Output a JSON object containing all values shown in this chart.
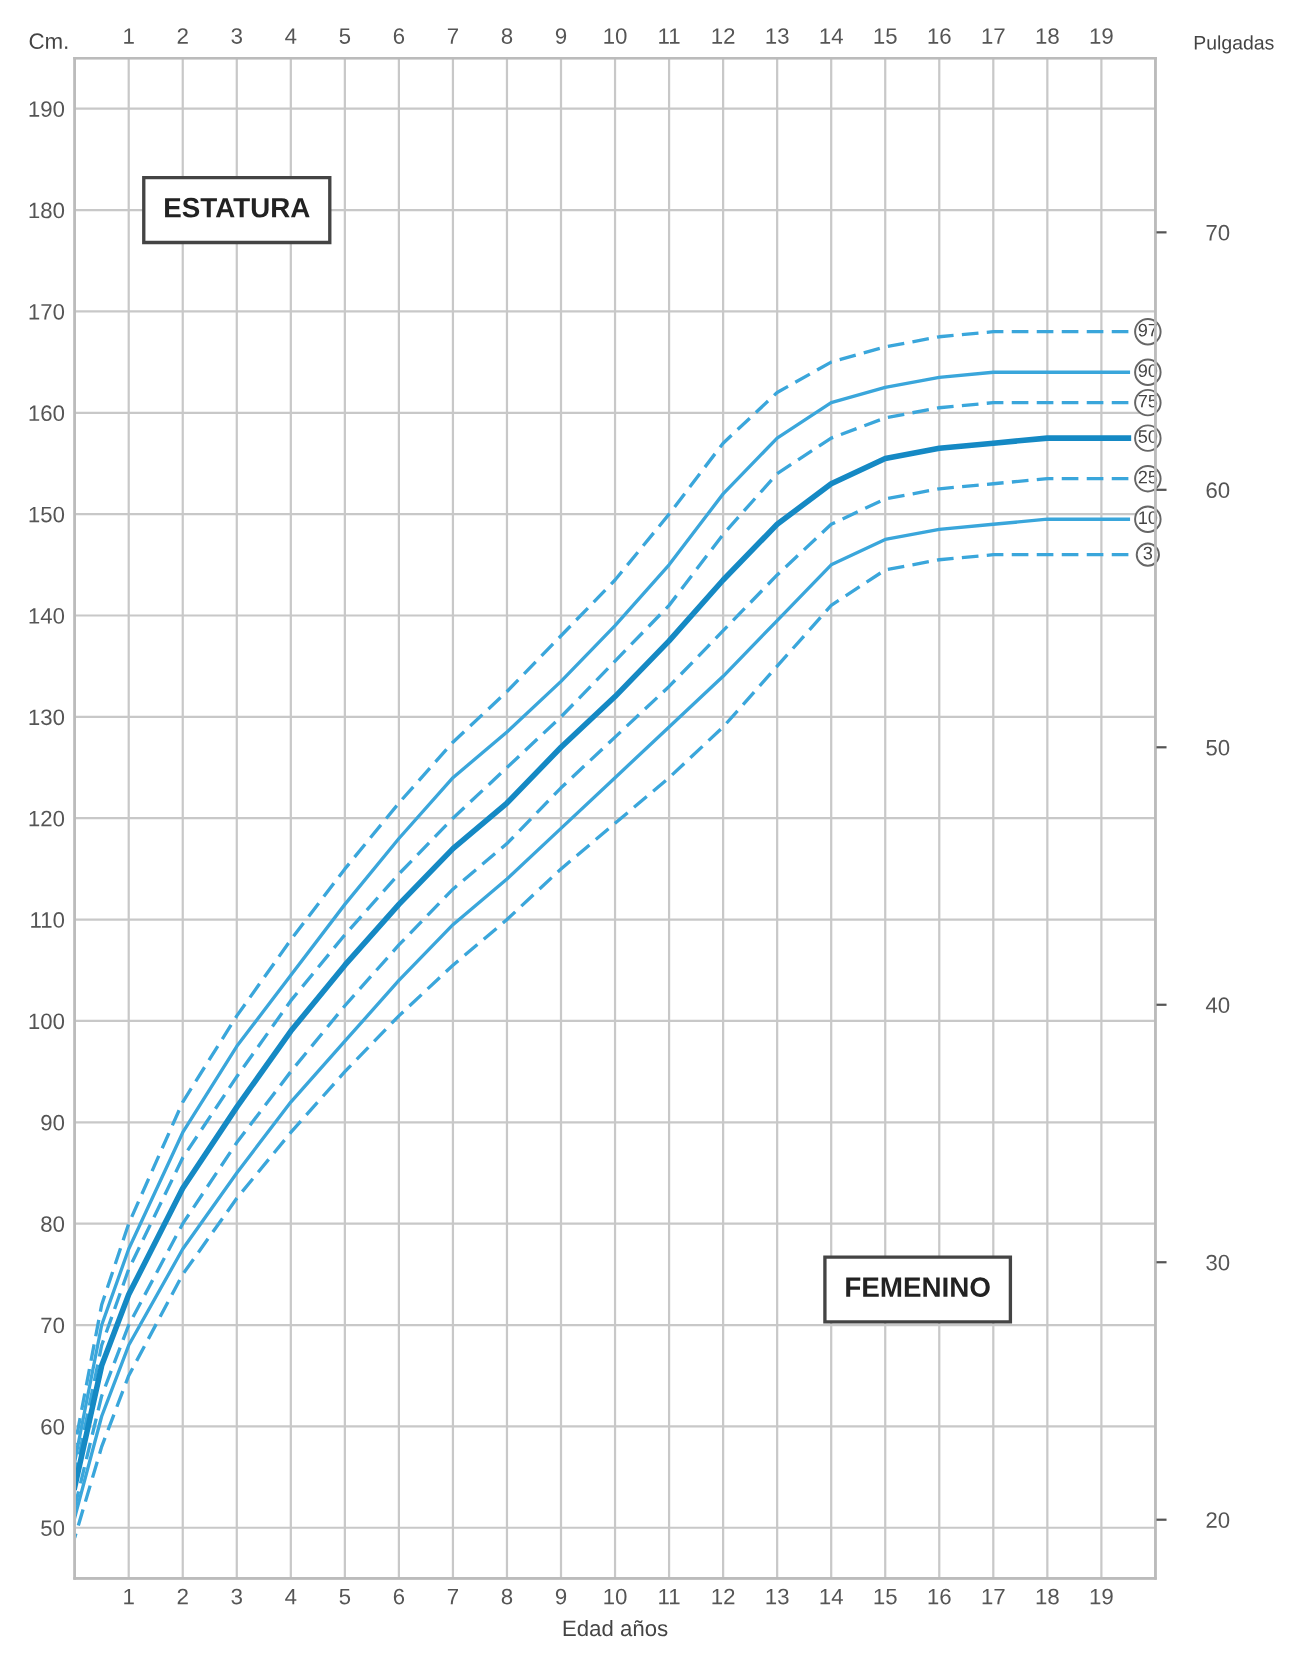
{
  "chart_data": {
    "type": "line",
    "xlabel": "Edad años",
    "ylabel": "Cm.",
    "y2label": "Pulgadas",
    "annotations": [
      "ESTATURA",
      "FEMENINO"
    ],
    "x": [
      0,
      0.5,
      1,
      2,
      3,
      4,
      5,
      6,
      7,
      8,
      9,
      10,
      11,
      12,
      13,
      14,
      15,
      16,
      17,
      18,
      19.5
    ],
    "series": [
      {
        "name": "97",
        "color": "#3aa6db",
        "line_style": "dashed",
        "values": [
          58,
          72,
          80,
          92,
          100.5,
          108,
          115,
          121.5,
          127.5,
          132.5,
          138,
          143.5,
          150,
          157,
          162,
          165,
          166.5,
          167.5,
          168,
          168,
          168
        ]
      },
      {
        "name": "90",
        "color": "#3aa6db",
        "line_style": "solid",
        "values": [
          56.5,
          70,
          77.5,
          89,
          97.5,
          104.5,
          111.5,
          118,
          124,
          128.5,
          133.5,
          139,
          145,
          152,
          157.5,
          161,
          162.5,
          163.5,
          164,
          164,
          164
        ]
      },
      {
        "name": "75",
        "color": "#3aa6db",
        "line_style": "dashed",
        "values": [
          55,
          68,
          75.5,
          86.5,
          94.5,
          102,
          108.5,
          114.5,
          120,
          125,
          130,
          135.5,
          141,
          148,
          154,
          157.5,
          159.5,
          160.5,
          161,
          161,
          161
        ]
      },
      {
        "name": "50",
        "color": "#1589c4",
        "line_style": "solid",
        "values": [
          54,
          66,
          73,
          83.5,
          91.5,
          99,
          105.5,
          111.5,
          117,
          121.5,
          127,
          132,
          137.5,
          143.5,
          149,
          153,
          155.5,
          156.5,
          157,
          157.5,
          157.5
        ]
      },
      {
        "name": "25",
        "color": "#3aa6db",
        "line_style": "dashed",
        "values": [
          52,
          63,
          70,
          80,
          88,
          95,
          101.5,
          107.5,
          113,
          117.5,
          123,
          128,
          133,
          138.5,
          144,
          149,
          151.5,
          152.5,
          153,
          153.5,
          153.5
        ]
      },
      {
        "name": "10",
        "color": "#3aa6db",
        "line_style": "solid",
        "values": [
          51,
          61,
          68,
          77.5,
          85,
          92,
          98,
          104,
          109.5,
          114,
          119,
          124,
          129,
          134,
          139.5,
          145,
          147.5,
          148.5,
          149,
          149.5,
          149.5
        ]
      },
      {
        "name": "3",
        "color": "#3aa6db",
        "line_style": "dashed",
        "values": [
          49,
          58,
          65,
          75,
          82.5,
          89,
          95,
          100.5,
          105.5,
          110,
          115,
          119.5,
          124,
          129,
          135,
          141,
          144.5,
          145.5,
          146,
          146,
          146
        ]
      }
    ],
    "xlim": [
      0,
      20
    ],
    "xticks": [
      1,
      2,
      3,
      4,
      5,
      6,
      7,
      8,
      9,
      10,
      11,
      12,
      13,
      14,
      15,
      16,
      17,
      18,
      19
    ],
    "x2lim": [
      0,
      20
    ],
    "x2ticks": [
      1,
      2,
      3,
      4,
      5,
      6,
      7,
      8,
      9,
      10,
      11,
      12,
      13,
      14,
      15,
      16,
      17,
      18,
      19
    ],
    "ylim": [
      45,
      195
    ],
    "yticks": [
      50,
      60,
      70,
      80,
      90,
      100,
      110,
      120,
      130,
      140,
      150,
      160,
      170,
      180,
      190
    ],
    "y2lim": [
      17.72,
      76.77
    ],
    "y2ticks": [
      20,
      30,
      40,
      50,
      60,
      70
    ],
    "grid": true,
    "legend": false,
    "marker": "none"
  }
}
